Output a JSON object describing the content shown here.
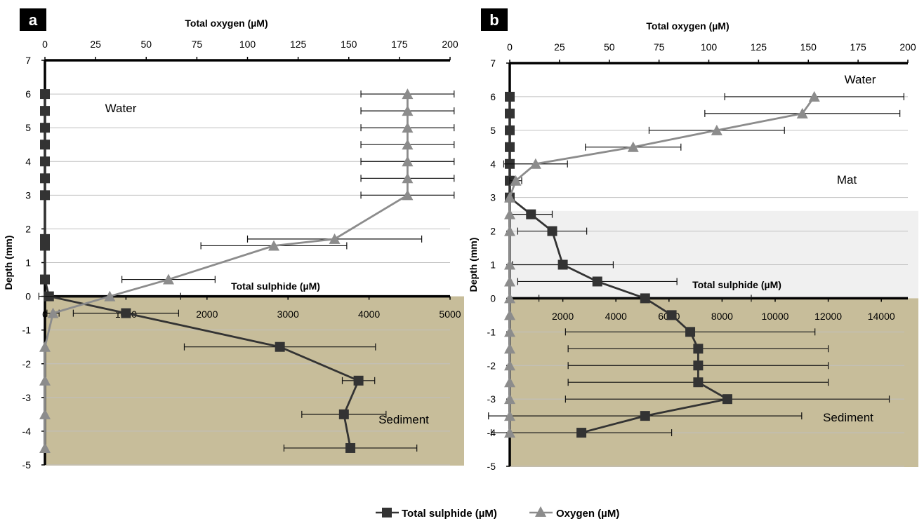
{
  "colors": {
    "sulphide": "#333333",
    "oxygen": "#8c8c8c",
    "sediment": "#c7bd9a",
    "mat": "#f0f0f0",
    "grid": "#c0c0c0"
  },
  "legend": {
    "sulphide_label": "Total sulphide (µM)",
    "oxygen_label": "Oxygen (µM)"
  },
  "chart_data": [
    {
      "type": "line",
      "panel_label": "a",
      "ylabel": "Depth (mm)",
      "ylim": [
        -5,
        7
      ],
      "yticks": [
        -5,
        -4,
        -3,
        -2,
        -1,
        0,
        1,
        2,
        3,
        4,
        5,
        6,
        7
      ],
      "oxygen_axis": {
        "label": "Total oxygen (µM)",
        "lim": [
          0,
          200
        ],
        "ticks": [
          0,
          25,
          50,
          75,
          100,
          125,
          150,
          175,
          200
        ]
      },
      "sulphide_axis": {
        "label": "Total sulphide (µM)",
        "lim": [
          0,
          5000
        ],
        "ticks": [
          0,
          1000,
          2000,
          3000,
          4000,
          5000
        ]
      },
      "regions": [
        {
          "label": "Water",
          "kind": "water",
          "from": 0,
          "to": 7
        },
        {
          "label": "Sediment",
          "kind": "sediment",
          "from": -5,
          "to": 0
        }
      ],
      "series": [
        {
          "name": "Total sulphide (µM)",
          "key": "sulphide",
          "marker": "square",
          "points": [
            {
              "y": 6,
              "x": 0
            },
            {
              "y": 5.5,
              "x": 0
            },
            {
              "y": 5,
              "x": 0
            },
            {
              "y": 4.5,
              "x": 0
            },
            {
              "y": 4,
              "x": 0
            },
            {
              "y": 3.5,
              "x": 0
            },
            {
              "y": 3,
              "x": 0
            },
            {
              "y": 1.7,
              "x": 0
            },
            {
              "y": 1.5,
              "x": 0
            },
            {
              "y": 0.5,
              "x": 0
            },
            {
              "y": 0,
              "x": 50
            },
            {
              "y": -0.5,
              "x": 1000,
              "err": 650
            },
            {
              "y": -1.5,
              "x": 2900,
              "err": 1180
            },
            {
              "y": -2.5,
              "x": 3870,
              "err": 200
            },
            {
              "y": -3.5,
              "x": 3690,
              "err": 520
            },
            {
              "y": -4.5,
              "x": 3770,
              "err": 820
            }
          ]
        },
        {
          "name": "Oxygen (µM)",
          "key": "oxygen",
          "marker": "triangle",
          "points": [
            {
              "y": 6,
              "x": 179,
              "err": 23
            },
            {
              "y": 5.5,
              "x": 179,
              "err": 23
            },
            {
              "y": 5,
              "x": 179,
              "err": 23
            },
            {
              "y": 4.5,
              "x": 179,
              "err": 23
            },
            {
              "y": 4,
              "x": 179,
              "err": 23
            },
            {
              "y": 3.5,
              "x": 179,
              "err": 23
            },
            {
              "y": 3,
              "x": 179,
              "err": 23
            },
            {
              "y": 1.7,
              "x": 143,
              "err": 43
            },
            {
              "y": 1.5,
              "x": 113,
              "err": 36
            },
            {
              "y": 0.5,
              "x": 61,
              "err": 23
            },
            {
              "y": 0,
              "x": 32,
              "err": 35
            },
            {
              "y": -0.5,
              "x": 4,
              "err": 3
            },
            {
              "y": -1.5,
              "x": 0
            },
            {
              "y": -2.5,
              "x": 0
            },
            {
              "y": -3.5,
              "x": 0
            },
            {
              "y": -4.5,
              "x": 0
            }
          ]
        }
      ]
    },
    {
      "type": "line",
      "panel_label": "b",
      "ylabel": "Depth (mm)",
      "ylim": [
        -5,
        7
      ],
      "yticks": [
        -5,
        -4,
        -3,
        -2,
        -1,
        0,
        1,
        2,
        3,
        4,
        5,
        6,
        7
      ],
      "oxygen_axis": {
        "label": "Total oxygen (µM)",
        "lim": [
          0,
          200
        ],
        "ticks": [
          0,
          25,
          50,
          75,
          100,
          125,
          150,
          175,
          200
        ]
      },
      "sulphide_axis": {
        "label": "Total sulphide (µM)",
        "lim": [
          0,
          15000
        ],
        "ticks": [
          0,
          2000,
          4000,
          6000,
          8000,
          10000,
          12000,
          14000
        ]
      },
      "regions": [
        {
          "label": "Water",
          "kind": "water",
          "from": 2.6,
          "to": 7
        },
        {
          "label": "Mat",
          "kind": "mat",
          "from": 0,
          "to": 2.6
        },
        {
          "label": "Sediment",
          "kind": "sediment",
          "from": -5,
          "to": 0
        }
      ],
      "series": [
        {
          "name": "Total sulphide (µM)",
          "key": "sulphide",
          "marker": "square",
          "points": [
            {
              "y": 6,
              "x": 0
            },
            {
              "y": 5.5,
              "x": 0
            },
            {
              "y": 5,
              "x": 0
            },
            {
              "y": 4.5,
              "x": 0
            },
            {
              "y": 4,
              "x": 0
            },
            {
              "y": 3.5,
              "x": 0
            },
            {
              "y": 3,
              "x": 0
            },
            {
              "y": 2.5,
              "x": 800,
              "err": 800
            },
            {
              "y": 2,
              "x": 1600,
              "err": 1300
            },
            {
              "y": 1,
              "x": 2000,
              "err": 1900
            },
            {
              "y": 0.5,
              "x": 3300,
              "err": 3000
            },
            {
              "y": 0,
              "x": 5100,
              "err": 4000
            },
            {
              "y": -0.5,
              "x": 6100
            },
            {
              "y": -1,
              "x": 6800,
              "err": 4700
            },
            {
              "y": -1.5,
              "x": 7100,
              "err": 4900
            },
            {
              "y": -2,
              "x": 7100,
              "err": 4900
            },
            {
              "y": -2.5,
              "x": 7100,
              "err": 4900
            },
            {
              "y": -3,
              "x": 8200,
              "err": 6100
            },
            {
              "y": -3.5,
              "x": 5100,
              "err": 5900
            },
            {
              "y": -4,
              "x": 2700,
              "err": 3400
            }
          ]
        },
        {
          "name": "Oxygen (µM)",
          "key": "oxygen",
          "marker": "triangle",
          "points": [
            {
              "y": 6,
              "x": 153,
              "err": 45
            },
            {
              "y": 5.5,
              "x": 147,
              "err": 49
            },
            {
              "y": 5,
              "x": 104,
              "err": 34
            },
            {
              "y": 4.5,
              "x": 62,
              "err": 24
            },
            {
              "y": 4,
              "x": 13,
              "err": 16
            },
            {
              "y": 3.5,
              "x": 3,
              "err": 3
            },
            {
              "y": 3,
              "x": 0
            },
            {
              "y": 2.5,
              "x": 0
            },
            {
              "y": 2,
              "x": 0
            },
            {
              "y": 1,
              "x": 0
            },
            {
              "y": 0.5,
              "x": 0
            },
            {
              "y": 0,
              "x": 0
            },
            {
              "y": -0.5,
              "x": 0
            },
            {
              "y": -1,
              "x": 0
            },
            {
              "y": -1.5,
              "x": 0
            },
            {
              "y": -2,
              "x": 0
            },
            {
              "y": -2.5,
              "x": 0
            },
            {
              "y": -3,
              "x": 0
            },
            {
              "y": -3.5,
              "x": 0
            },
            {
              "y": -4,
              "x": 0
            }
          ]
        }
      ]
    }
  ]
}
